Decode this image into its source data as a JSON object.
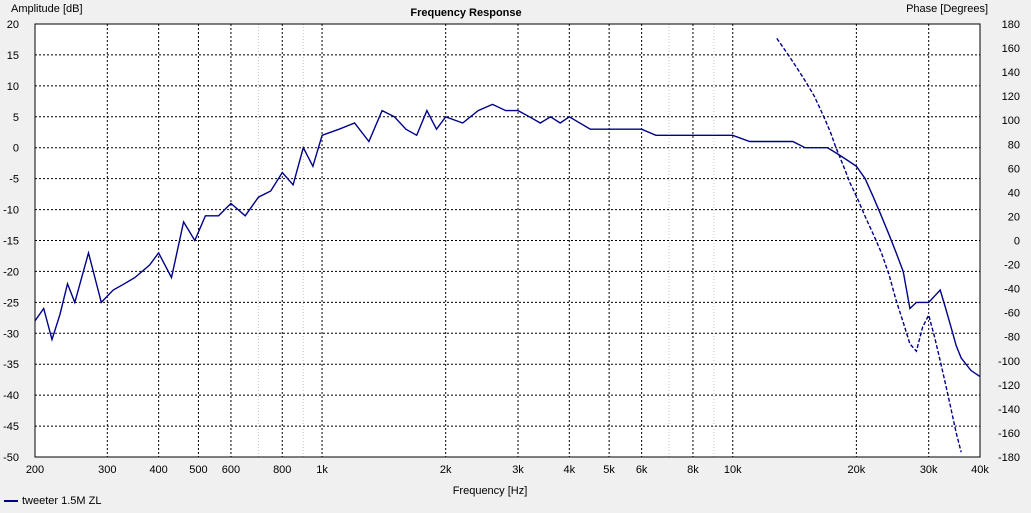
{
  "chart_data": {
    "type": "line",
    "title": "Frequency Response",
    "xlabel": "Frequency [Hz]",
    "ylabel_left": "Amplitude [dB]",
    "ylabel_right": "Phase [Degrees]",
    "x_scale": "log",
    "xlim": [
      200,
      40000
    ],
    "ylim_left": [
      -50,
      20
    ],
    "ylim_right": [
      -180,
      180
    ],
    "grid": true,
    "legend_position": "bottom-left",
    "x_ticks": [
      {
        "value": 200,
        "label": "200"
      },
      {
        "value": 300,
        "label": "300"
      },
      {
        "value": 400,
        "label": "400"
      },
      {
        "value": 500,
        "label": "500"
      },
      {
        "value": 600,
        "label": "600"
      },
      {
        "value": 800,
        "label": "800"
      },
      {
        "value": 1000,
        "label": "1k"
      },
      {
        "value": 2000,
        "label": "2k"
      },
      {
        "value": 3000,
        "label": "3k"
      },
      {
        "value": 4000,
        "label": "4k"
      },
      {
        "value": 5000,
        "label": "5k"
      },
      {
        "value": 6000,
        "label": "6k"
      },
      {
        "value": 8000,
        "label": "8k"
      },
      {
        "value": 10000,
        "label": "10k"
      },
      {
        "value": 20000,
        "label": "20k"
      },
      {
        "value": 30000,
        "label": "30k"
      },
      {
        "value": 40000,
        "label": "40k"
      }
    ],
    "y_ticks_left": [
      20,
      15,
      10,
      5,
      0,
      -5,
      -10,
      -15,
      -20,
      -25,
      -30,
      -35,
      -40,
      -45,
      -50
    ],
    "y_ticks_right": [
      180,
      160,
      140,
      120,
      100,
      80,
      60,
      40,
      20,
      0,
      -20,
      -40,
      -60,
      -80,
      -100,
      -120,
      -140,
      -160,
      -180
    ],
    "series": [
      {
        "name": "tweeter 1.5M ZL",
        "kind": "amplitude",
        "axis": "left",
        "color": "#00008b",
        "style": "solid",
        "x": [
          200,
          210,
          220,
          230,
          240,
          250,
          270,
          290,
          310,
          330,
          350,
          380,
          400,
          430,
          460,
          490,
          520,
          560,
          600,
          650,
          700,
          750,
          800,
          850,
          900,
          950,
          1000,
          1100,
          1200,
          1300,
          1400,
          1500,
          1600,
          1700,
          1800,
          1900,
          2000,
          2200,
          2400,
          2600,
          2800,
          3000,
          3200,
          3400,
          3600,
          3800,
          4000,
          4500,
          5000,
          5500,
          6000,
          6500,
          7000,
          8000,
          9000,
          10000,
          11000,
          12000,
          13000,
          14000,
          15000,
          16000,
          17000,
          18000,
          19000,
          20000,
          21000,
          22000,
          23000,
          24000,
          25000,
          26000,
          27000,
          28000,
          29000,
          30000,
          31000,
          32000,
          33000,
          34000,
          35000,
          36000,
          38000,
          40000
        ],
        "y": [
          -28,
          -26,
          -31,
          -27,
          -22,
          -25,
          -17,
          -25,
          -23,
          -22,
          -21,
          -19,
          -17,
          -21,
          -12,
          -15,
          -11,
          -11,
          -9,
          -11,
          -8,
          -7,
          -4,
          -6,
          0,
          -3,
          2,
          3,
          4,
          1,
          6,
          5,
          3,
          2,
          6,
          3,
          5,
          4,
          6,
          7,
          6,
          6,
          5,
          4,
          5,
          4,
          5,
          3,
          3,
          3,
          3,
          2,
          2,
          2,
          2,
          2,
          1,
          1,
          1,
          1,
          0,
          0,
          0,
          -1,
          -2,
          -3,
          -5,
          -8,
          -11,
          -14,
          -17,
          -20,
          -26,
          -25,
          -25,
          -25,
          -24,
          -23,
          -26,
          -29,
          -32,
          -34,
          -36,
          -37
        ]
      },
      {
        "name": "Phase",
        "kind": "phase",
        "axis": "right",
        "color": "#00008b",
        "style": "dashed",
        "x": [
          12800,
          13300,
          13800,
          14300,
          14800,
          15300,
          15800,
          16300,
          16800,
          17300,
          17800,
          18300,
          18800,
          19300,
          19800,
          20300,
          21000,
          22000,
          23000,
          24000,
          25000,
          26000,
          27000,
          28000,
          29000,
          30000,
          31000,
          32000,
          33000,
          34000,
          35000,
          36000
        ],
        "y": [
          168,
          160,
          152,
          144,
          136,
          128,
          120,
          110,
          100,
          90,
          78,
          68,
          58,
          48,
          40,
          32,
          20,
          5,
          -10,
          -28,
          -50,
          -68,
          -86,
          -92,
          -72,
          -62,
          -80,
          -100,
          -120,
          -140,
          -160,
          -176
        ]
      }
    ]
  },
  "legend": {
    "label": "tweeter 1.5M ZL"
  }
}
